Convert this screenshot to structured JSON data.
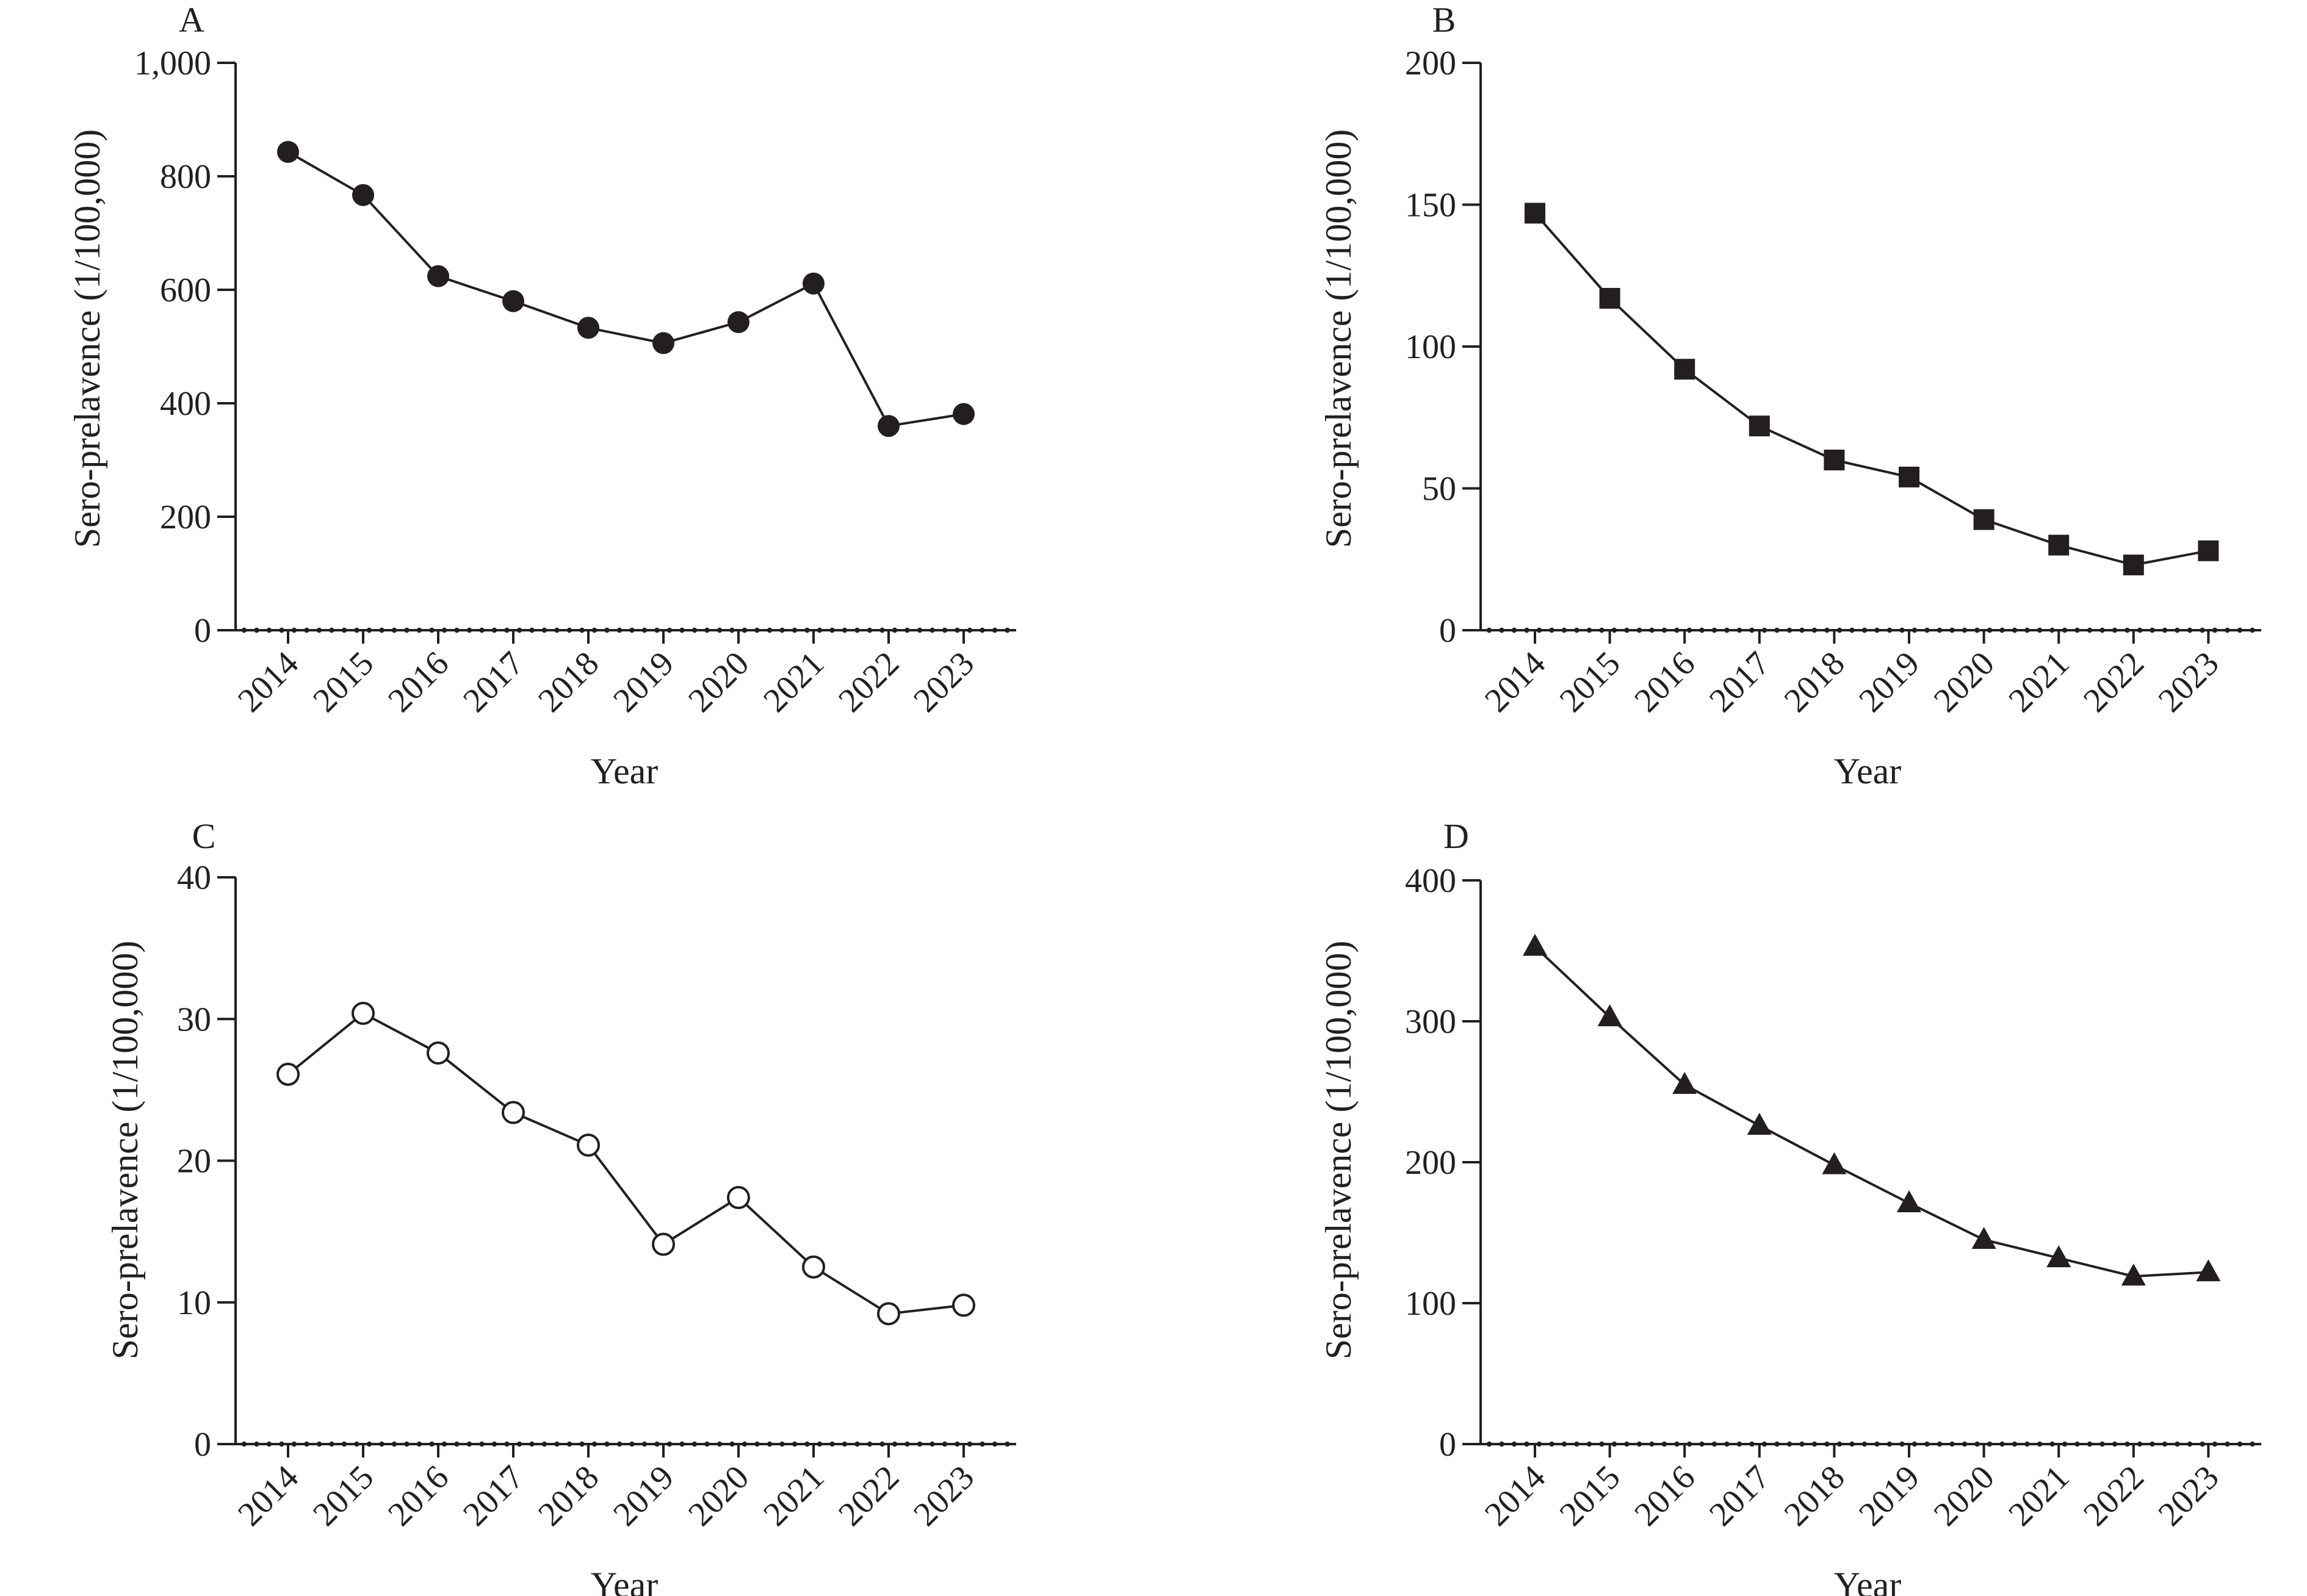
{
  "colors": {
    "ink": "#231f20",
    "background": "#ffffff"
  },
  "chart_data": [
    {
      "panel": "A",
      "type": "line",
      "marker": "filled-circle",
      "xlabel": "Year",
      "ylabel": "Sero-prelavence (1/100,000)",
      "categories": [
        "2014",
        "2015",
        "2016",
        "2017",
        "2018",
        "2019",
        "2020",
        "2021",
        "2022",
        "2023"
      ],
      "values": [
        843,
        767,
        624,
        580,
        533,
        506,
        543,
        611,
        360,
        381
      ],
      "ylim": [
        0,
        1000
      ],
      "yticks": [
        0,
        200,
        400,
        600,
        800,
        1000
      ],
      "ytick_labels": [
        "0",
        "200",
        "400",
        "600",
        "800",
        "1,000"
      ],
      "grid": false
    },
    {
      "panel": "B",
      "type": "line",
      "marker": "filled-square",
      "xlabel": "Year",
      "ylabel": "Sero-prelavence (1/100,000)",
      "categories": [
        "2014",
        "2015",
        "2016",
        "2017",
        "2018",
        "2019",
        "2020",
        "2021",
        "2022",
        "2023"
      ],
      "values": [
        147,
        117,
        92,
        72,
        60,
        54,
        39,
        30,
        23,
        28
      ],
      "ylim": [
        0,
        200
      ],
      "yticks": [
        0,
        50,
        100,
        150,
        200
      ],
      "ytick_labels": [
        "0",
        "50",
        "100",
        "150",
        "200"
      ],
      "grid": false
    },
    {
      "panel": "C",
      "type": "line",
      "marker": "open-circle",
      "xlabel": "Year",
      "ylabel": "Sero-prelavence (1/100,000)",
      "categories": [
        "2014",
        "2015",
        "2016",
        "2017",
        "2018",
        "2019",
        "2020",
        "2021",
        "2022",
        "2023"
      ],
      "values": [
        26.1,
        30.4,
        27.6,
        23.4,
        21.1,
        14.1,
        17.4,
        12.5,
        9.2,
        9.8
      ],
      "ylim": [
        0,
        40
      ],
      "yticks": [
        0,
        10,
        20,
        30,
        40
      ],
      "ytick_labels": [
        "0",
        "10",
        "20",
        "30",
        "40"
      ],
      "grid": false
    },
    {
      "panel": "D",
      "type": "line",
      "marker": "filled-triangle",
      "xlabel": "Year",
      "ylabel": "Sero-prelavence (1/100,000)",
      "categories": [
        "2014",
        "2015",
        "2016",
        "2017",
        "2018",
        "2019",
        "2020",
        "2021",
        "2022",
        "2023"
      ],
      "values": [
        353,
        303,
        255,
        226,
        198,
        171,
        145,
        132,
        119,
        122
      ],
      "ylim": [
        0,
        400
      ],
      "yticks": [
        0,
        100,
        200,
        300,
        400
      ],
      "ytick_labels": [
        "0",
        "100",
        "200",
        "300",
        "400"
      ],
      "grid": false
    }
  ]
}
